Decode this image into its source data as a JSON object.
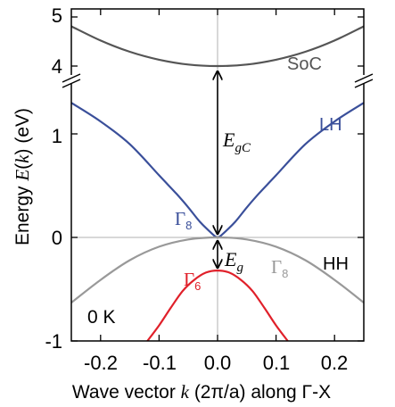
{
  "chart_data": {
    "type": "line",
    "x_tick_labels": [
      "-0.2",
      "-0.1",
      "0.0",
      "0.1",
      "0.2"
    ],
    "y_tick_labels": [
      "-1",
      "0",
      "1",
      "4",
      "5"
    ],
    "xlim": [
      -0.25,
      0.25
    ],
    "ylim_lower": [
      -1,
      1.45
    ],
    "ylim_upper": [
      3.7,
      5
    ],
    "axis_break": true,
    "xlabel": {
      "pre": "Wave vector ",
      "k": "k",
      "unit": " (2π/a) along Γ-X"
    },
    "ylabel": {
      "pre": "Energy ",
      "E": "E",
      "open": "(",
      "k": "k",
      "close": ") (eV)"
    },
    "temperature_label": "0 K",
    "series": [
      {
        "name": "SoC",
        "color": "#555555",
        "x": [
          -0.25,
          -0.2,
          -0.15,
          -0.1,
          -0.05,
          0.0,
          0.05,
          0.1,
          0.15,
          0.2,
          0.25
        ],
        "y": [
          4.81,
          4.52,
          4.29,
          4.13,
          4.03,
          4.0,
          4.03,
          4.13,
          4.29,
          4.52,
          4.81
        ]
      },
      {
        "name": "LH",
        "color": "#3a4f9a",
        "x": [
          -0.25,
          -0.2,
          -0.15,
          -0.1,
          -0.07,
          -0.05,
          -0.03,
          -0.01,
          0.0,
          0.01,
          0.03,
          0.05,
          0.07,
          0.1,
          0.15,
          0.2,
          0.25
        ],
        "y": [
          1.3,
          1.12,
          0.9,
          0.6,
          0.42,
          0.29,
          0.15,
          0.04,
          0.0,
          0.04,
          0.15,
          0.29,
          0.42,
          0.6,
          0.9,
          1.12,
          1.3
        ],
        "annotation": {
          "gamma": "Γ",
          "subscript": "8"
        }
      },
      {
        "name": "HH",
        "color": "#999999",
        "x": [
          -0.25,
          -0.2,
          -0.15,
          -0.1,
          -0.05,
          0.0,
          0.05,
          0.1,
          0.15,
          0.2,
          0.25
        ],
        "y": [
          -0.63,
          -0.41,
          -0.22,
          -0.09,
          -0.02,
          0.0,
          -0.02,
          -0.09,
          -0.22,
          -0.41,
          -0.63
        ],
        "annotation": {
          "gamma": "Γ",
          "subscript": "8"
        }
      },
      {
        "name": "",
        "color": "#e0202a",
        "x": [
          -0.12,
          -0.1,
          -0.08,
          -0.06,
          -0.04,
          -0.02,
          0.0,
          0.02,
          0.04,
          0.06,
          0.08,
          0.1,
          0.12
        ],
        "y": [
          -1.0,
          -0.85,
          -0.68,
          -0.52,
          -0.41,
          -0.34,
          -0.32,
          -0.34,
          -0.41,
          -0.52,
          -0.68,
          -0.85,
          -1.0
        ],
        "annotation": {
          "gamma": "Γ",
          "subscript": "6"
        }
      }
    ],
    "annotations": {
      "EgC": {
        "main": "E",
        "sub": "gC"
      },
      "Eg": {
        "main": "E",
        "sub": "g"
      }
    }
  }
}
